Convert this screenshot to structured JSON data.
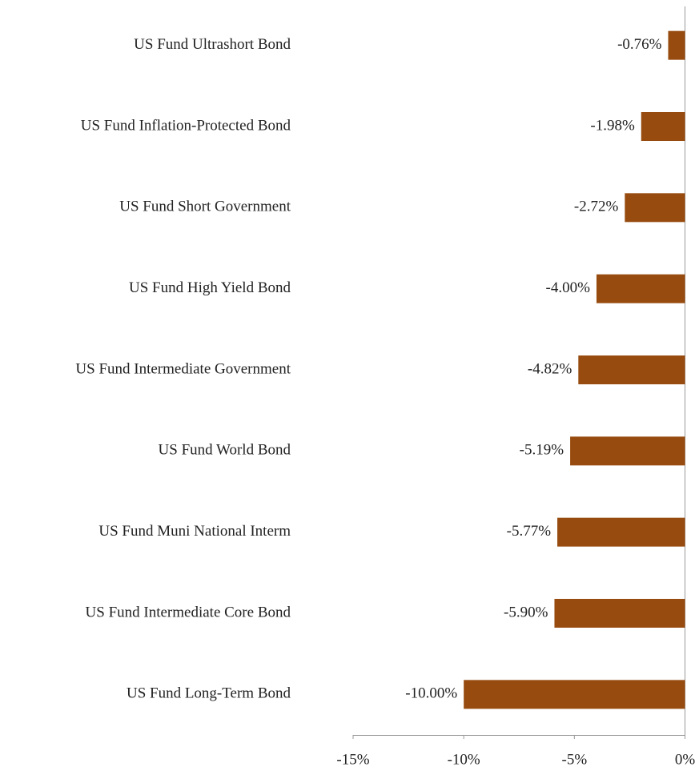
{
  "chart_data": {
    "type": "bar",
    "orientation": "horizontal",
    "categories": [
      "US Fund Ultrashort Bond",
      "US Fund Inflation-Protected Bond",
      "US Fund Short Government",
      "US Fund High Yield Bond",
      "US Fund Intermediate Government",
      "US Fund World Bond",
      "US Fund Muni National Interm",
      "US Fund Intermediate Core Bond",
      "US Fund Long-Term Bond"
    ],
    "values": [
      -0.76,
      -1.98,
      -2.72,
      -4.0,
      -4.82,
      -5.19,
      -5.77,
      -5.9,
      -10.0
    ],
    "value_labels": [
      "-0.76%",
      "-1.98%",
      "-2.72%",
      "-4.00%",
      "-4.82%",
      "-5.19%",
      "-5.77%",
      "-5.90%",
      "-10.00%"
    ],
    "color": "#974b0f",
    "xlim": [
      -15,
      0
    ],
    "xticks": [
      {
        "value": -15,
        "label": "-15%"
      },
      {
        "value": -10,
        "label": "-10%"
      },
      {
        "value": -5,
        "label": "-5%"
      },
      {
        "value": 0,
        "label": "0%"
      }
    ],
    "grid": false
  }
}
